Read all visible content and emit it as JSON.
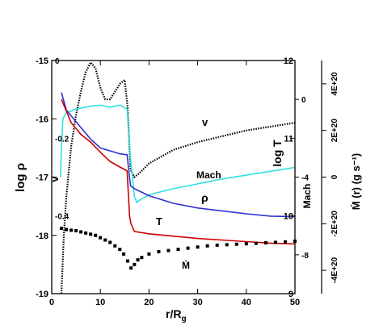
{
  "chart_data": {
    "type": "line",
    "x": {
      "label": "r/R",
      "label_sub": "g",
      "range": [
        0,
        50
      ],
      "ticks": [
        "0",
        "10",
        "20",
        "30",
        "40",
        "50"
      ]
    },
    "left_axis": {
      "label": "log ρ",
      "range": [
        -19,
        -15
      ],
      "ticks": [
        "-19",
        "-18",
        "-17",
        "-16",
        "-15"
      ]
    },
    "inner_left_axis": {
      "label": "v",
      "range": [
        -0.6,
        0
      ],
      "ticks": [
        "0",
        "-0.2",
        "-0.4"
      ]
    },
    "right_axis_T": {
      "label": "log T",
      "range": [
        9,
        12
      ],
      "ticks": [
        "9",
        "10",
        "11",
        "12"
      ]
    },
    "right_axis_mach": {
      "label": "Mach",
      "range": [
        -10,
        2
      ],
      "ticks": [
        "0",
        "-4",
        "-8"
      ]
    },
    "right_axis_mdot": {
      "label": "Ṁ (r) (g s⁻¹)",
      "range": [
        -5e+20,
        5e+20
      ],
      "ticks": [
        "-4E+20",
        "-2E+20",
        "0",
        "2E+20",
        "4E+20"
      ]
    },
    "annotations": {
      "v": "v",
      "mach": "Mach",
      "rho": "ρ",
      "T": "T",
      "mdot": "Ṁ"
    },
    "series": [
      {
        "name": "v",
        "color": "#000000",
        "style": "dotted",
        "x": [
          2.0,
          2.5,
          3.0,
          4.0,
          5.0,
          6.0,
          7.0,
          8.0,
          9.0,
          10.0,
          11.0,
          12.0,
          13.0,
          14.0,
          15.0,
          15.6,
          16.2,
          17.0,
          18.0,
          20.0,
          25.0,
          30.0,
          35.0,
          40.0,
          45.0,
          50.0
        ],
        "y": [
          -0.6,
          -0.45,
          -0.35,
          -0.22,
          -0.14,
          -0.08,
          -0.03,
          -0.005,
          -0.02,
          -0.07,
          -0.1,
          -0.1,
          -0.08,
          -0.06,
          -0.05,
          -0.12,
          -0.28,
          -0.3,
          -0.29,
          -0.265,
          -0.23,
          -0.21,
          -0.195,
          -0.18,
          -0.17,
          -0.16
        ]
      },
      {
        "name": "Mach",
        "color": "#30e0e0",
        "style": "solid",
        "x": [
          1.8,
          2.0,
          2.3,
          3.0,
          4.0,
          5.0,
          6.0,
          8.0,
          10.0,
          12.0,
          14.0,
          15.5,
          16.2,
          17.0,
          17.5,
          18.0,
          20.0,
          25.0,
          30.0,
          35.0,
          40.0,
          45.0,
          50.0
        ],
        "y": [
          -4.0,
          -2.5,
          -1.0,
          -0.7,
          -0.6,
          -0.5,
          -0.45,
          -0.35,
          -0.3,
          -0.4,
          -0.3,
          -0.5,
          -3.0,
          -5.0,
          -5.3,
          -5.2,
          -4.9,
          -4.6,
          -4.35,
          -4.1,
          -3.9,
          -3.7,
          -3.5
        ]
      },
      {
        "name": "ρ",
        "color": "#3030d0",
        "style": "solid",
        "x": [
          2.0,
          3.0,
          4.0,
          6.0,
          8.0,
          10.0,
          12.0,
          14.0,
          15.5,
          16.2,
          17.0,
          20.0,
          25.0,
          30.0,
          35.0,
          40.0,
          45.0,
          50.0
        ],
        "y": [
          -15.55,
          -15.85,
          -15.95,
          -16.15,
          -16.35,
          -16.5,
          -16.55,
          -16.6,
          -16.62,
          -17.15,
          -17.2,
          -17.32,
          -17.45,
          -17.53,
          -17.58,
          -17.63,
          -17.67,
          -17.68
        ]
      },
      {
        "name": "T",
        "color": "#cc0000",
        "style": "solid",
        "x": [
          2.0,
          3.0,
          4.0,
          6.0,
          8.0,
          10.0,
          12.0,
          14.0,
          15.5,
          16.0,
          16.3,
          17.0,
          20.0,
          25.0,
          30.0,
          35.0,
          40.0,
          45.0,
          50.0
        ],
        "y": [
          11.5,
          11.35,
          11.2,
          11.05,
          10.95,
          10.82,
          10.7,
          10.63,
          10.58,
          10.0,
          9.9,
          9.8,
          9.77,
          9.74,
          9.71,
          9.69,
          9.67,
          9.65,
          9.64
        ]
      },
      {
        "name": "Ṁ",
        "color": "#000000",
        "style": "squares",
        "x": [
          2.0,
          3.0,
          4.0,
          5.0,
          6.0,
          7.0,
          8.0,
          9.0,
          10.0,
          11.0,
          12.0,
          13.0,
          14.0,
          14.8,
          15.6,
          16.3,
          17.0,
          17.7,
          18.5,
          20.0,
          22.0,
          24.0,
          26.0,
          28.0,
          30.0,
          32.0,
          34.0,
          36.0,
          38.0,
          40.0,
          42.0,
          44.0,
          46.0,
          48.0,
          50.0
        ],
        "y": [
          -2.2e+20,
          -2.25e+20,
          -2.28e+20,
          -2.3e+20,
          -2.35e+20,
          -2.4e+20,
          -2.45e+20,
          -2.5e+20,
          -2.6e+20,
          -2.7e+20,
          -2.8e+20,
          -2.95e+20,
          -3.1e+20,
          -3.3e+20,
          -3.6e+20,
          -3.9e+20,
          -3.75e+20,
          -3.55e+20,
          -3.45e+20,
          -3.3e+20,
          -3.2e+20,
          -3.15e+20,
          -3.1e+20,
          -3.05e+20,
          -3e+20,
          -2.95e+20,
          -2.92e+20,
          -2.9e+20,
          -2.88e+20,
          -2.86e+20,
          -2.84e+20,
          -2.82e+20,
          -2.8e+20,
          -2.78e+20,
          -2.75e+20
        ]
      }
    ]
  }
}
